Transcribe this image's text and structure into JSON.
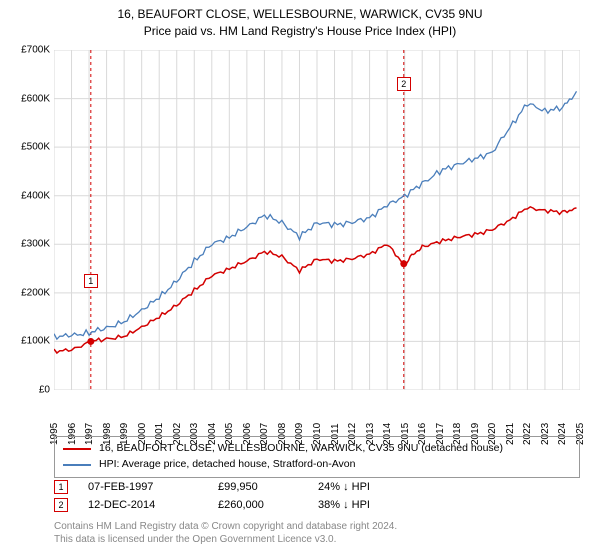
{
  "title_line1": "16, BEAUFORT CLOSE, WELLESBOURNE, WARWICK, CV35 9NU",
  "title_line2": "Price paid vs. HM Land Registry's House Price Index (HPI)",
  "chart": {
    "type": "line",
    "background_color": "#ffffff",
    "grid_color": "#d9d9d9",
    "axis_color": "#000000",
    "x_start": 1995,
    "x_end": 2025,
    "x_ticks": [
      1995,
      1996,
      1997,
      1998,
      1999,
      2000,
      2001,
      2002,
      2003,
      2004,
      2005,
      2006,
      2007,
      2008,
      2009,
      2010,
      2011,
      2012,
      2013,
      2014,
      2015,
      2016,
      2017,
      2018,
      2019,
      2020,
      2021,
      2022,
      2023,
      2024,
      2025
    ],
    "y_min": 0,
    "y_max": 700000,
    "y_ticks": [
      {
        "v": 0,
        "label": "£0"
      },
      {
        "v": 100000,
        "label": "£100K"
      },
      {
        "v": 200000,
        "label": "£200K"
      },
      {
        "v": 300000,
        "label": "£300K"
      },
      {
        "v": 400000,
        "label": "£400K"
      },
      {
        "v": 500000,
        "label": "£500K"
      },
      {
        "v": 600000,
        "label": "£600K"
      },
      {
        "v": 700000,
        "label": "£700K"
      }
    ],
    "series": [
      {
        "name": "property",
        "color": "#d30000",
        "width": 1.5,
        "points": [
          [
            1995.0,
            80000
          ],
          [
            1996.0,
            82000
          ],
          [
            1997.1,
            99950
          ],
          [
            1998.0,
            105000
          ],
          [
            1999.0,
            110000
          ],
          [
            2000.0,
            130000
          ],
          [
            2001.0,
            150000
          ],
          [
            2002.0,
            175000
          ],
          [
            2003.0,
            205000
          ],
          [
            2004.0,
            235000
          ],
          [
            2005.0,
            250000
          ],
          [
            2006.0,
            265000
          ],
          [
            2007.0,
            285000
          ],
          [
            2008.0,
            275000
          ],
          [
            2009.0,
            245000
          ],
          [
            2010.0,
            270000
          ],
          [
            2011.0,
            265000
          ],
          [
            2012.0,
            270000
          ],
          [
            2013.0,
            280000
          ],
          [
            2014.0,
            300000
          ],
          [
            2014.95,
            260000
          ],
          [
            2015.5,
            280000
          ],
          [
            2016.0,
            295000
          ],
          [
            2017.0,
            305000
          ],
          [
            2018.0,
            315000
          ],
          [
            2019.0,
            320000
          ],
          [
            2020.0,
            330000
          ],
          [
            2021.0,
            350000
          ],
          [
            2022.0,
            375000
          ],
          [
            2023.0,
            370000
          ],
          [
            2024.0,
            365000
          ],
          [
            2024.8,
            375000
          ]
        ]
      },
      {
        "name": "hpi",
        "color": "#4a7ebb",
        "width": 1.3,
        "points": [
          [
            1995.0,
            110000
          ],
          [
            1996.0,
            112000
          ],
          [
            1997.0,
            118000
          ],
          [
            1998.0,
            128000
          ],
          [
            1999.0,
            140000
          ],
          [
            2000.0,
            165000
          ],
          [
            2001.0,
            190000
          ],
          [
            2002.0,
            225000
          ],
          [
            2003.0,
            265000
          ],
          [
            2004.0,
            300000
          ],
          [
            2005.0,
            315000
          ],
          [
            2006.0,
            335000
          ],
          [
            2007.0,
            360000
          ],
          [
            2008.0,
            345000
          ],
          [
            2009.0,
            315000
          ],
          [
            2010.0,
            345000
          ],
          [
            2011.0,
            340000
          ],
          [
            2012.0,
            345000
          ],
          [
            2013.0,
            355000
          ],
          [
            2014.0,
            380000
          ],
          [
            2015.0,
            400000
          ],
          [
            2016.0,
            425000
          ],
          [
            2017.0,
            450000
          ],
          [
            2018.0,
            465000
          ],
          [
            2019.0,
            475000
          ],
          [
            2020.0,
            490000
          ],
          [
            2021.0,
            540000
          ],
          [
            2022.0,
            590000
          ],
          [
            2023.0,
            575000
          ],
          [
            2024.0,
            580000
          ],
          [
            2024.8,
            615000
          ]
        ]
      }
    ],
    "sale_markers": [
      {
        "n": "1",
        "x": 1997.1,
        "y": 99950,
        "color": "#d30000",
        "label_y_offset": -60
      },
      {
        "n": "2",
        "x": 2014.95,
        "y": 260000,
        "color": "#d30000",
        "label_y_offset": -180
      }
    ]
  },
  "legend": {
    "items": [
      {
        "color": "#d30000",
        "label": "16, BEAUFORT CLOSE, WELLESBOURNE, WARWICK, CV35 9NU (detached house)"
      },
      {
        "color": "#4a7ebb",
        "label": "HPI: Average price, detached house, Stratford-on-Avon"
      }
    ]
  },
  "sales": [
    {
      "n": "1",
      "color": "#d30000",
      "date": "07-FEB-1997",
      "price": "£99,950",
      "pct": "24% ↓ HPI"
    },
    {
      "n": "2",
      "color": "#d30000",
      "date": "12-DEC-2014",
      "price": "£260,000",
      "pct": "38% ↓ HPI"
    }
  ],
  "footer_line1": "Contains HM Land Registry data © Crown copyright and database right 2024.",
  "footer_line2": "This data is licensed under the Open Government Licence v3.0."
}
